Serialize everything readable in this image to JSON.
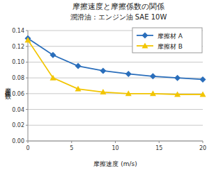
{
  "chart_data": {
    "type": "line",
    "title": "摩擦速度と摩擦係数の関係",
    "subtitle": "潤滑油：エンジン油 SAE 10W",
    "x_label": "摩擦速度 (m/s)",
    "y_label": "摩擦係数",
    "x": [
      0,
      2.87,
      5.74,
      8.6,
      11.5,
      14.3,
      17.1,
      20
    ],
    "series": [
      {
        "name": "摩擦材 A",
        "color": "#2a6ebb",
        "marker": "diamond",
        "values": [
          0.13,
          0.109,
          0.095,
          0.089,
          0.085,
          0.082,
          0.08,
          0.078
        ]
      },
      {
        "name": "摩擦材 B",
        "color": "#f2c500",
        "marker": "triangle",
        "values": [
          0.128,
          0.08,
          0.066,
          0.062,
          0.06,
          0.06,
          0.059,
          0.059
        ]
      }
    ],
    "xlim": [
      0,
      20
    ],
    "xticks": [
      0,
      5,
      10,
      15,
      20
    ],
    "ylim": [
      0,
      0.14
    ],
    "yticks": [
      {
        "value": 0,
        "label": "0.00"
      },
      {
        "value": 0.02,
        "label": "0.02"
      },
      {
        "value": 0.04,
        "label": "0.04"
      },
      {
        "value": 0.06,
        "label": "0.06"
      },
      {
        "value": 0.08,
        "label": "0.08"
      },
      {
        "value": 0.1,
        "label": "0.10"
      },
      {
        "value": 0.12,
        "label": "0.12"
      },
      {
        "value": 0.14,
        "label": "0.14"
      }
    ],
    "grid": true,
    "legend": "top-right"
  }
}
